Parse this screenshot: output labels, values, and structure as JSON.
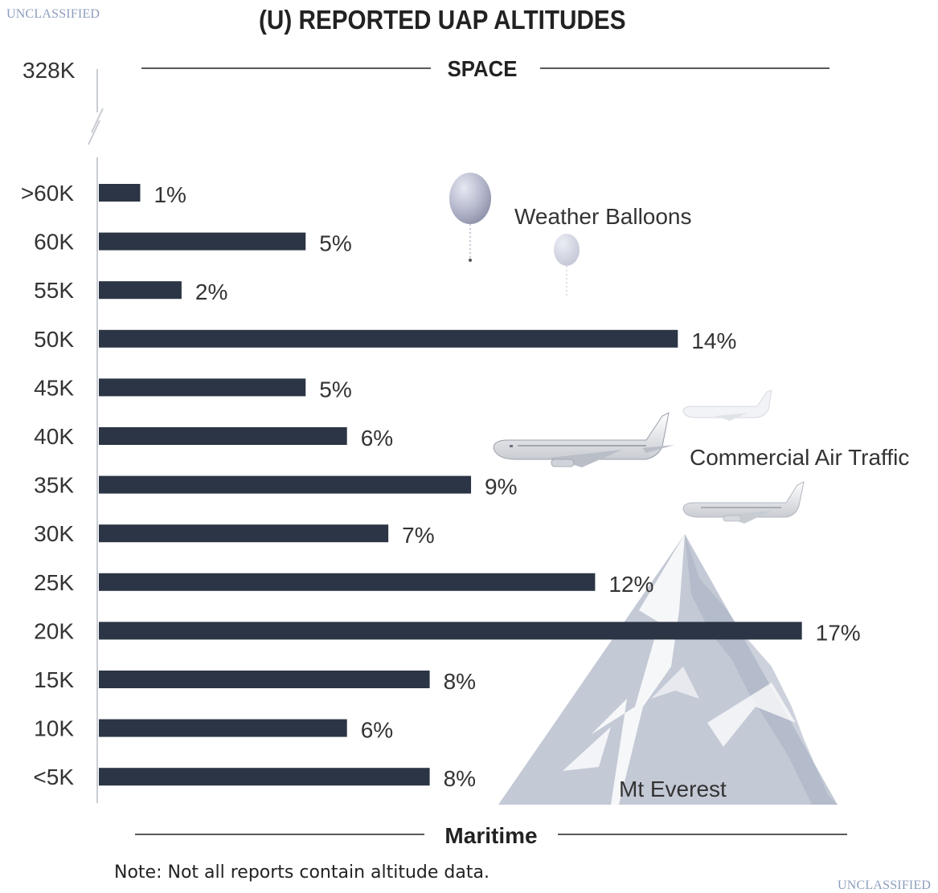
{
  "header": {
    "classification_top": "UNCLASSIFIED",
    "classification_bottom": "UNCLASSIFIED",
    "title": "(U) REPORTED UAP ALTITUDES"
  },
  "footer": {
    "note": "Note: Not all reports contain altitude data."
  },
  "chart_data": {
    "type": "bar",
    "orientation": "horizontal",
    "title": "(U) REPORTED UAP ALTITUDES",
    "xlabel": "",
    "ylabel": "",
    "value_unit": "%",
    "categories": [
      ">60K",
      "60K",
      "55K",
      "50K",
      "45K",
      "40K",
      "35K",
      "30K",
      "25K",
      "20K",
      "15K",
      "10K",
      "<5K"
    ],
    "values": [
      1,
      5,
      2,
      14,
      5,
      6,
      9,
      7,
      12,
      17,
      8,
      6,
      8
    ],
    "value_labels": [
      "1%",
      "5%",
      "2%",
      "14%",
      "5%",
      "6%",
      "9%",
      "7%",
      "12%",
      "17%",
      "8%",
      "6%",
      "8%"
    ],
    "xlim": [
      0,
      17.5
    ],
    "grid": false,
    "legend": "none",
    "bar_color": "#2b3545",
    "top_axis_label": "328K",
    "boundaries": {
      "top": "SPACE",
      "bottom": "Maritime"
    },
    "annotations": [
      "Weather Balloons",
      "Commercial Air Traffic",
      "Mt Everest"
    ],
    "illustrations": [
      "weather-balloon-icon",
      "airplane-icon",
      "mountain-icon"
    ]
  }
}
